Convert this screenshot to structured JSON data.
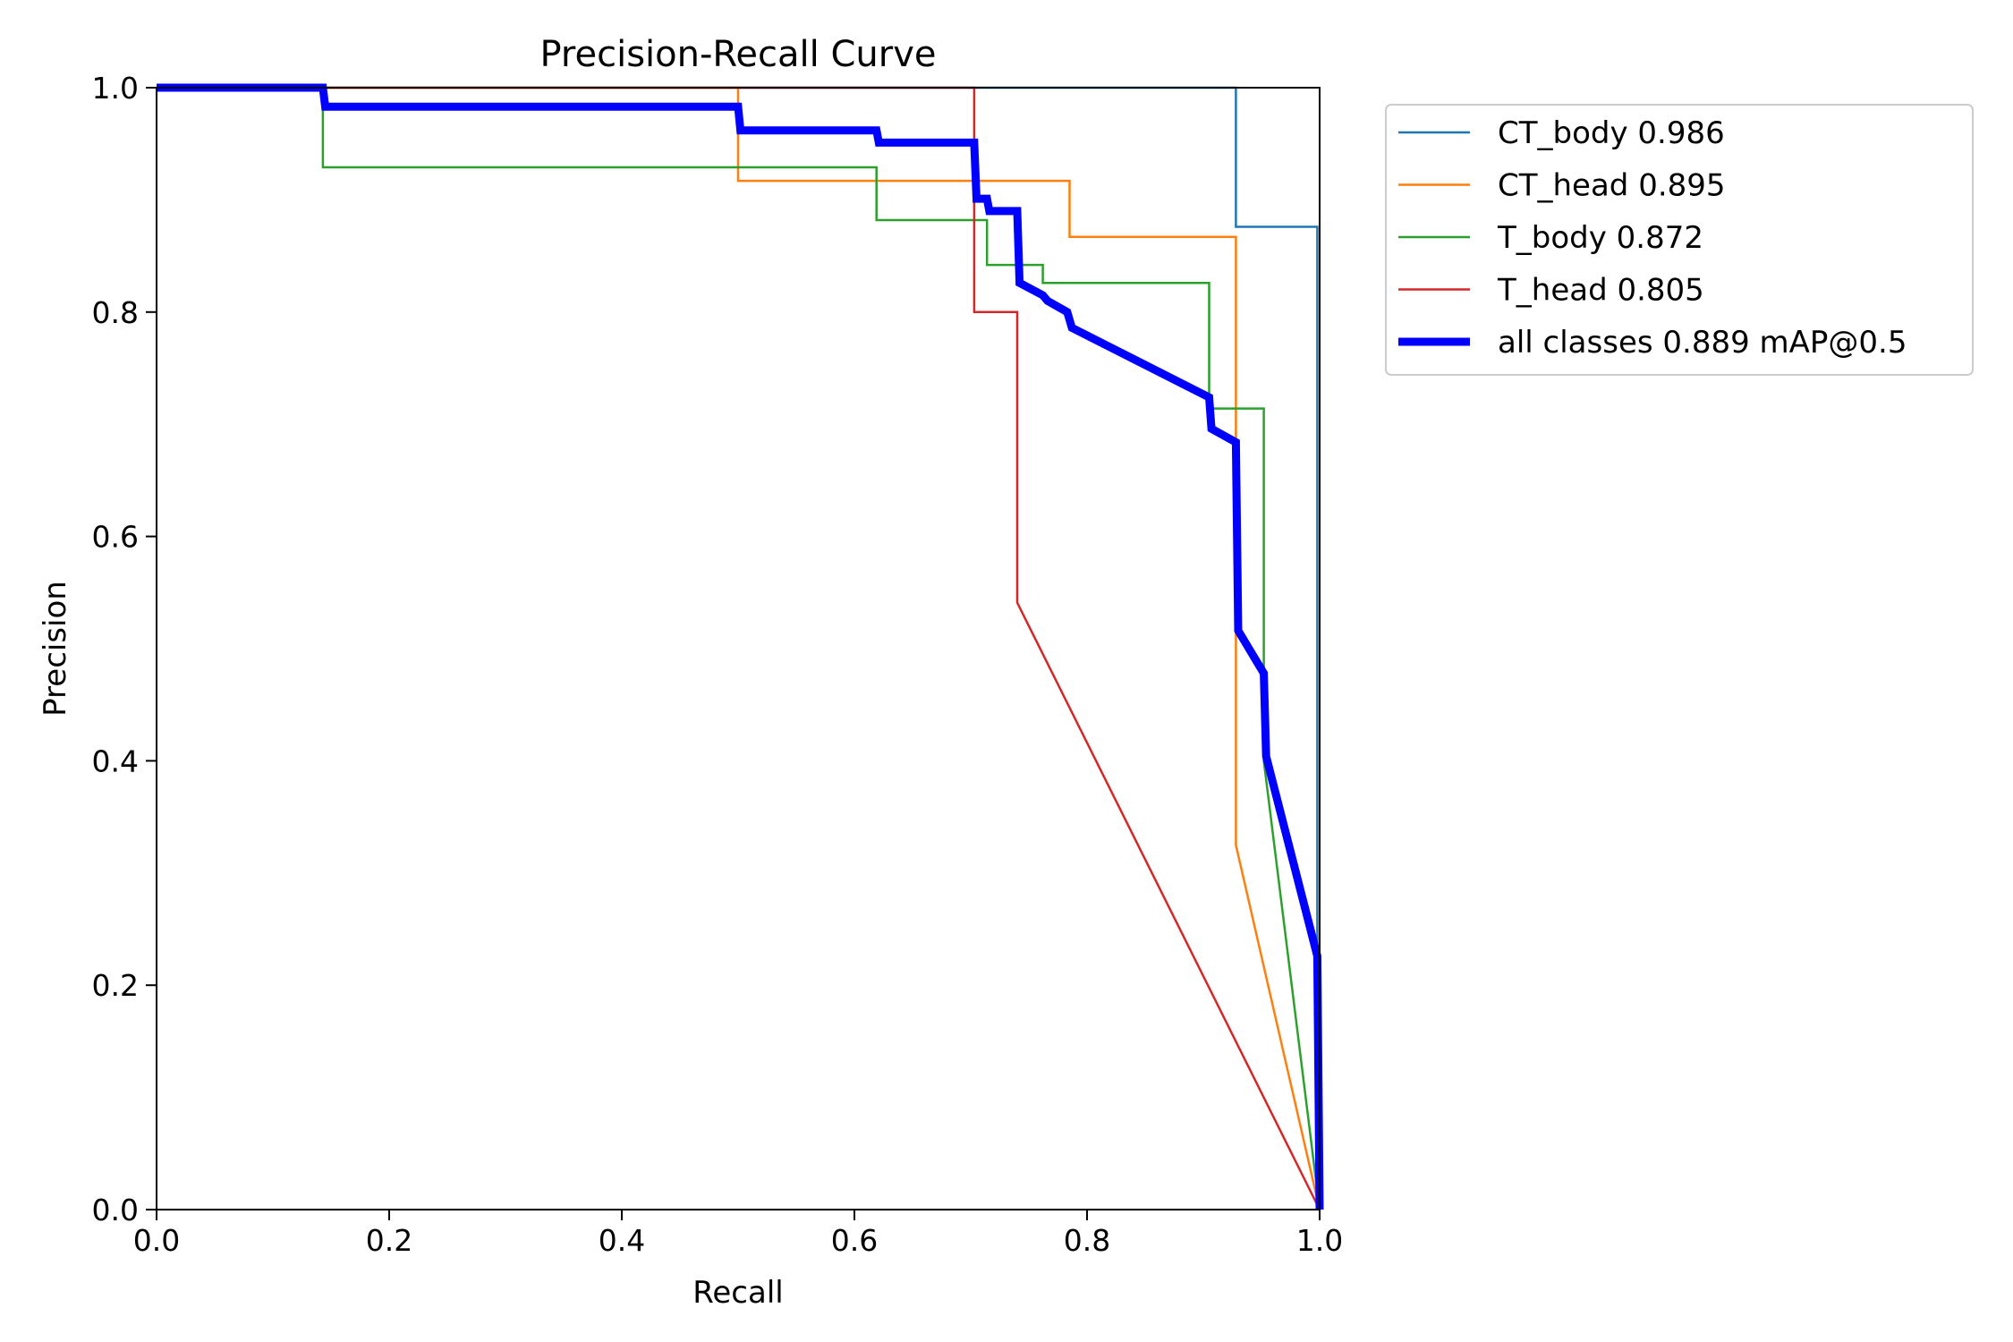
{
  "chart_data": {
    "type": "line",
    "title": "Precision-Recall Curve",
    "xlabel": "Recall",
    "ylabel": "Precision",
    "xlim": [
      0,
      1
    ],
    "ylim": [
      0,
      1
    ],
    "xticks": [
      "0.0",
      "0.2",
      "0.4",
      "0.6",
      "0.8",
      "1.0"
    ],
    "yticks": [
      "0.0",
      "0.2",
      "0.4",
      "0.6",
      "0.8",
      "1.0"
    ],
    "grid": false,
    "legend_position": "outside-top-right",
    "series": [
      {
        "name": "CT_body 0.986",
        "color": "#1f77b4",
        "width": "thin",
        "points": [
          [
            0,
            1
          ],
          [
            0.928,
            1
          ],
          [
            0.928,
            0.876
          ],
          [
            0.998,
            0.876
          ],
          [
            0.998,
            0
          ]
        ]
      },
      {
        "name": "CT_head 0.895",
        "color": "#ff7f0e",
        "width": "thin",
        "points": [
          [
            0,
            1
          ],
          [
            0.5,
            1
          ],
          [
            0.5,
            0.917
          ],
          [
            0.785,
            0.917
          ],
          [
            0.785,
            0.867
          ],
          [
            0.928,
            0.867
          ],
          [
            0.928,
            0.325
          ],
          [
            1.0,
            0
          ]
        ]
      },
      {
        "name": "T_body 0.872",
        "color": "#2ca02c",
        "width": "thin",
        "points": [
          [
            0,
            1
          ],
          [
            0.143,
            1
          ],
          [
            0.143,
            0.929
          ],
          [
            0.619,
            0.929
          ],
          [
            0.619,
            0.882
          ],
          [
            0.714,
            0.882
          ],
          [
            0.714,
            0.842
          ],
          [
            0.762,
            0.842
          ],
          [
            0.762,
            0.826
          ],
          [
            0.905,
            0.826
          ],
          [
            0.905,
            0.714
          ],
          [
            0.952,
            0.714
          ],
          [
            0.952,
            0.4
          ],
          [
            1.0,
            0
          ]
        ]
      },
      {
        "name": "T_head 0.805",
        "color": "#d62728",
        "width": "thin",
        "points": [
          [
            0,
            1
          ],
          [
            0.703,
            1
          ],
          [
            0.703,
            0.8
          ],
          [
            0.74,
            0.8
          ],
          [
            0.74,
            0.541
          ],
          [
            1.0,
            0
          ]
        ]
      },
      {
        "name": "all classes 0.889 mAP@0.5",
        "color": "#0000ff",
        "width": "thick",
        "points": [
          [
            0,
            1
          ],
          [
            0.143,
            1
          ],
          [
            0.145,
            0.983
          ],
          [
            0.5,
            0.983
          ],
          [
            0.502,
            0.962
          ],
          [
            0.619,
            0.962
          ],
          [
            0.621,
            0.951
          ],
          [
            0.703,
            0.951
          ],
          [
            0.705,
            0.901
          ],
          [
            0.714,
            0.901
          ],
          [
            0.716,
            0.89
          ],
          [
            0.74,
            0.89
          ],
          [
            0.742,
            0.826
          ],
          [
            0.762,
            0.815
          ],
          [
            0.766,
            0.81
          ],
          [
            0.783,
            0.8
          ],
          [
            0.787,
            0.786
          ],
          [
            0.905,
            0.724
          ],
          [
            0.907,
            0.696
          ],
          [
            0.928,
            0.684
          ],
          [
            0.93,
            0.516
          ],
          [
            0.952,
            0.478
          ],
          [
            0.954,
            0.404
          ],
          [
            0.998,
            0.226
          ],
          [
            1.0,
            0
          ]
        ]
      }
    ]
  }
}
